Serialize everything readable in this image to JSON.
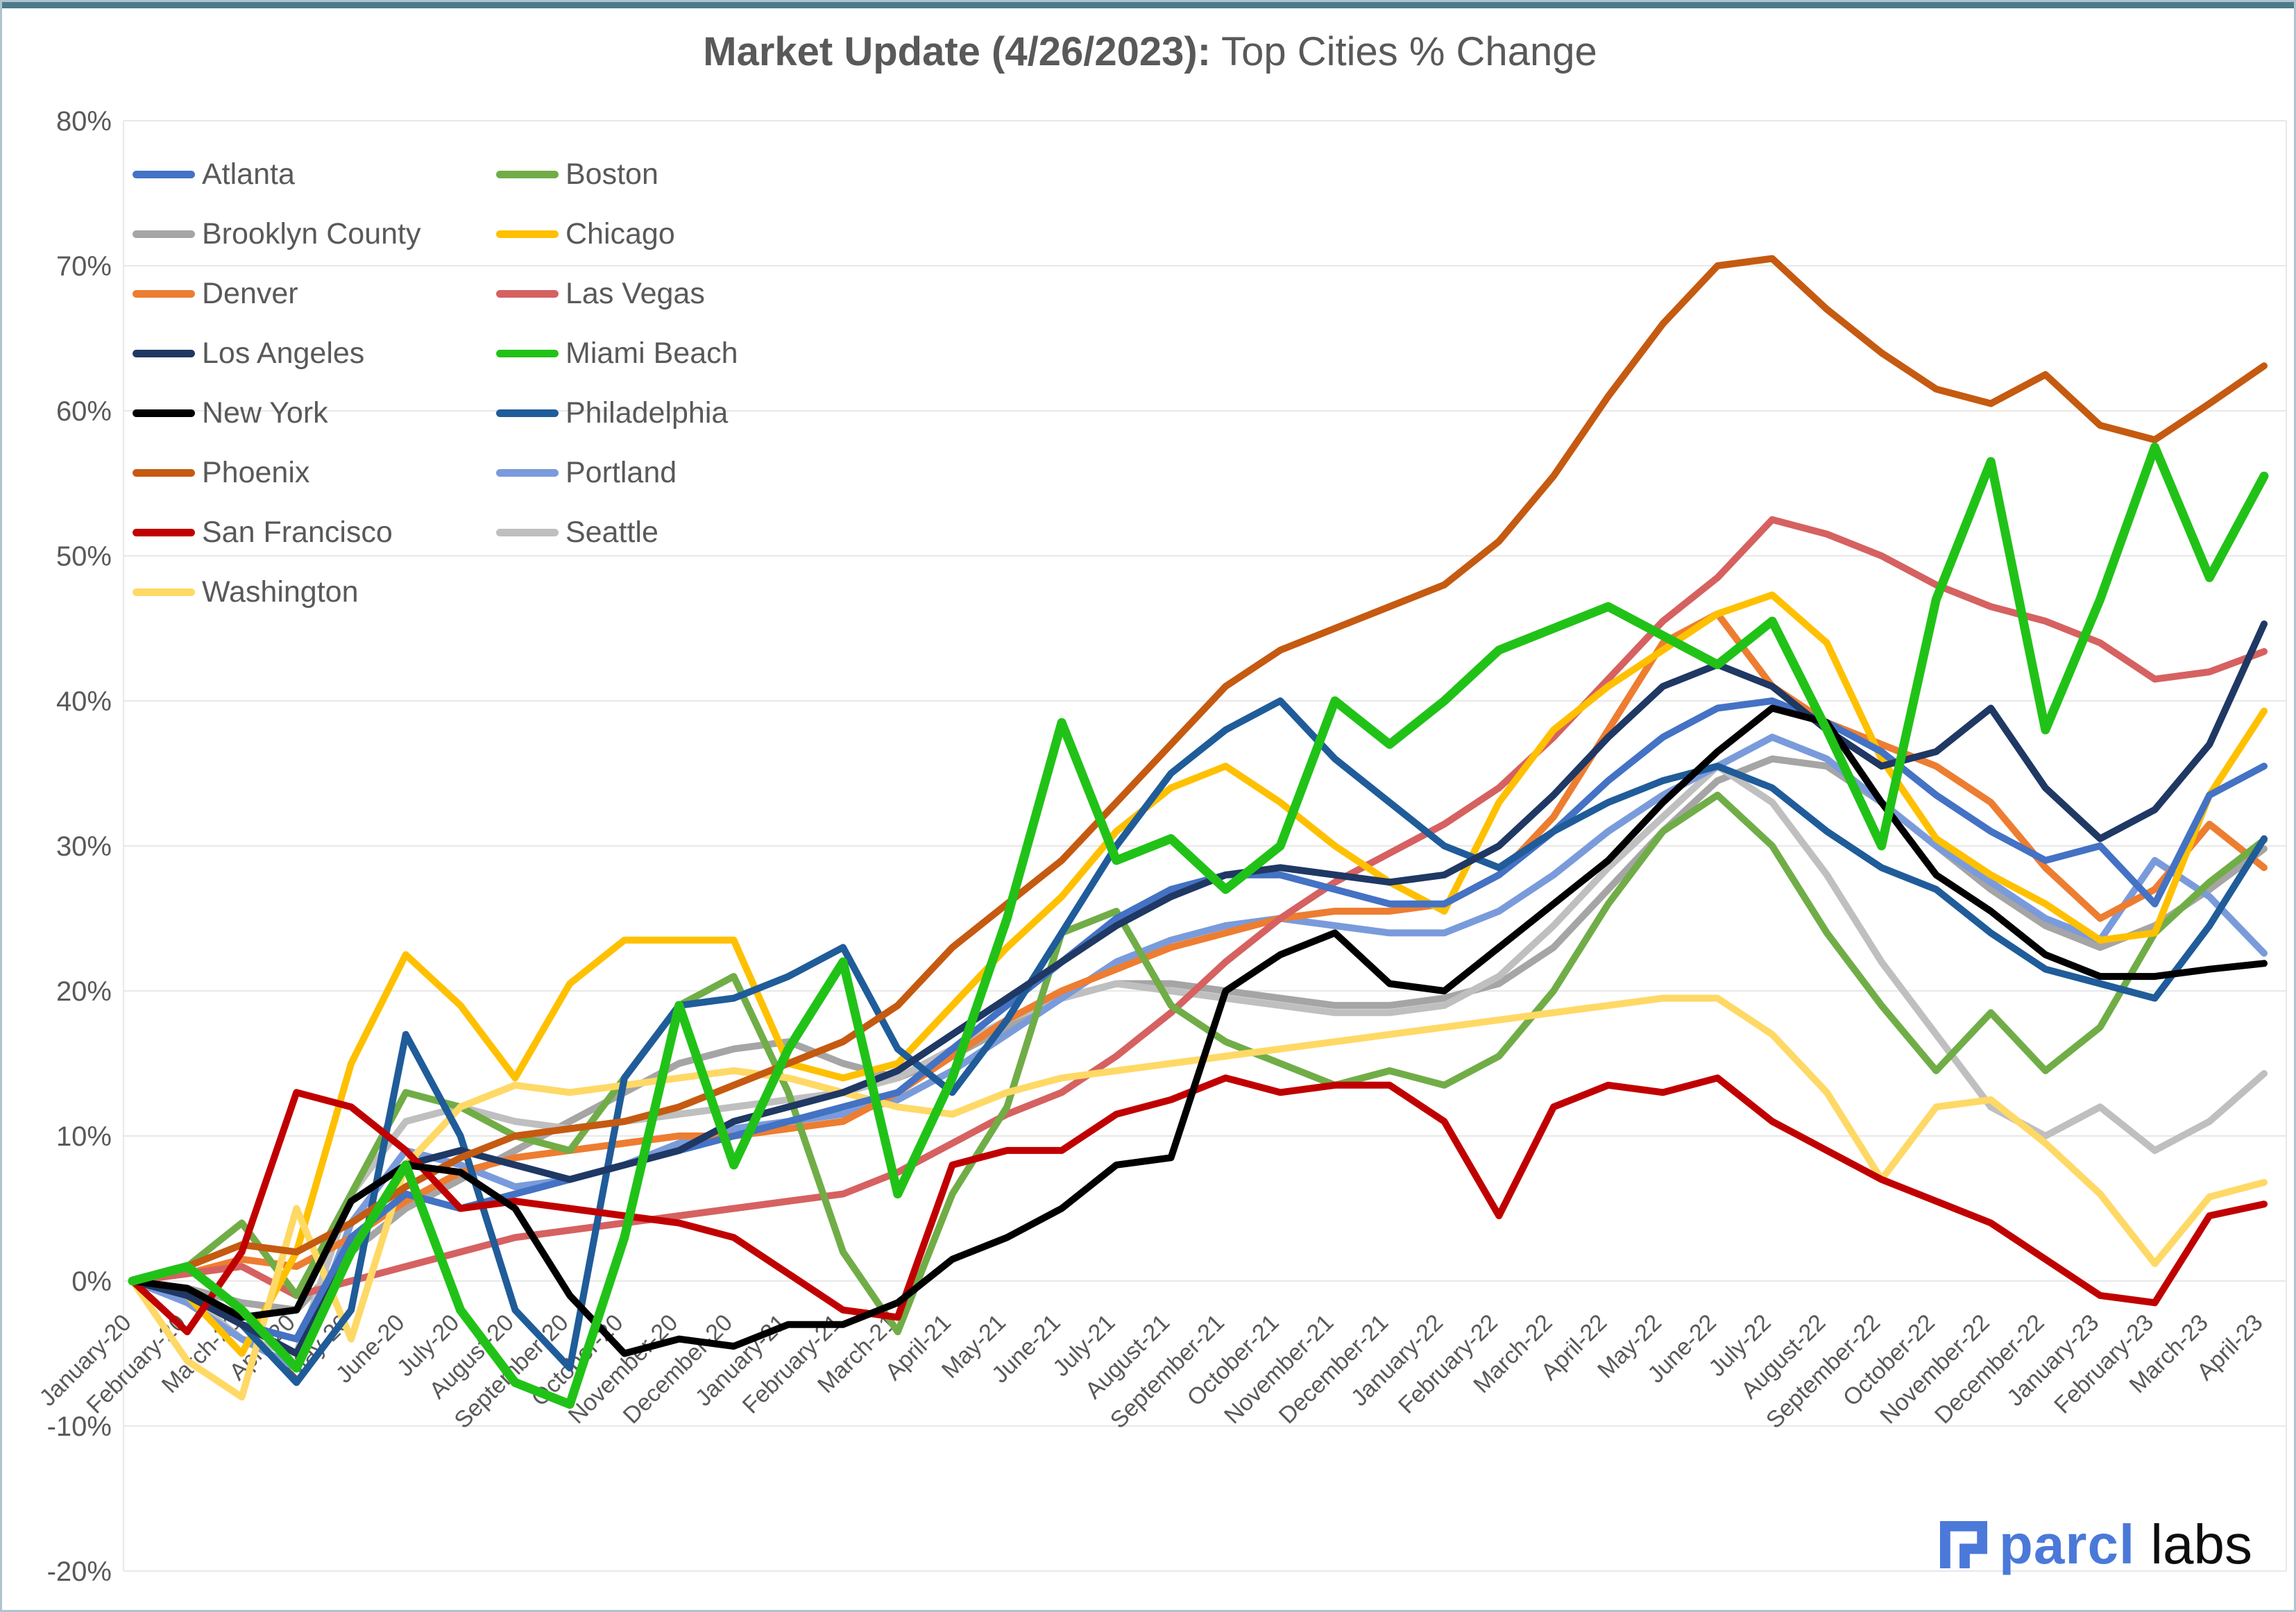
{
  "frame": {
    "background": "#ffffff",
    "border_color": "#afc3cf",
    "top_strip_color": "#4c7a8b"
  },
  "title": {
    "bold": "Market Update (4/26/2023):",
    "normal": "Top Cities % Change",
    "color": "#595959"
  },
  "logo": {
    "brand": "parcl",
    "suffix": "labs",
    "brand_color": "#4b79da",
    "suffix_color": "#0d0d0d"
  },
  "axes": {
    "text_color": "#595959",
    "gridline_color": "#e8e8e8",
    "y_tick_labels": [
      "80%",
      "70%",
      "60%",
      "50%",
      "40%",
      "30%",
      "20%",
      "10%",
      "0%",
      "-10%",
      "-20%"
    ],
    "y_tick_values": [
      80,
      70,
      60,
      50,
      40,
      30,
      20,
      10,
      0,
      -10,
      -20
    ]
  },
  "chart_data": {
    "type": "line",
    "title": "Market Update (4/26/2023): Top Cities % Change",
    "ylabel": "% change",
    "ylim": [
      -20,
      80
    ],
    "y_step": 10,
    "grid": "horizontal",
    "legend_position": "top-left-two-columns",
    "x": [
      "January-20",
      "February-20",
      "March-20",
      "April-20",
      "May-20",
      "June-20",
      "July-20",
      "August-20",
      "September-20",
      "October-20",
      "November-20",
      "December-20",
      "January-21",
      "February-21",
      "March-21",
      "April-21",
      "May-21",
      "June-21",
      "July-21",
      "August-21",
      "September-21",
      "October-21",
      "November-21",
      "December-21",
      "January-22",
      "February-22",
      "March-22",
      "April-22",
      "May-22",
      "June-22",
      "July-22",
      "August-22",
      "September-22",
      "October-22",
      "November-22",
      "December-22",
      "January-23",
      "February-23",
      "March-23",
      "April-23"
    ],
    "series": [
      {
        "name": "Atlanta",
        "color": "#4472c4",
        "values": [
          0,
          -1,
          -3,
          -4,
          3,
          6,
          5,
          6,
          7,
          8,
          9,
          10,
          11,
          12,
          13,
          16,
          19,
          22,
          25,
          27,
          28,
          28,
          27,
          26,
          26,
          28,
          31,
          34.5,
          37.5,
          39.5,
          40,
          38.5,
          36.5,
          33.5,
          31,
          29,
          30,
          26,
          33.5,
          35.5
        ]
      },
      {
        "name": "Boston",
        "color": "#70ad47",
        "values": [
          0,
          1,
          4,
          -1,
          6,
          13,
          12,
          10,
          9,
          14,
          19,
          21,
          13,
          2,
          -3.5,
          6,
          12,
          24,
          25.5,
          19,
          16.5,
          15,
          13.5,
          14.5,
          13.5,
          15.5,
          20,
          26,
          31,
          33.5,
          30,
          24,
          19,
          14.5,
          18.5,
          14.5,
          17.5,
          24,
          27.5,
          30.4
        ]
      },
      {
        "name": "Brooklyn County",
        "color": "#a5a5a5",
        "values": [
          0,
          -0.5,
          -1.5,
          -2,
          2,
          5,
          7,
          9,
          11,
          13,
          15,
          16,
          16.5,
          15,
          14,
          15.5,
          17.5,
          19.5,
          20.5,
          20.5,
          20,
          19.5,
          19,
          19,
          19.5,
          20.5,
          23,
          27,
          31,
          34.5,
          36,
          35.5,
          33,
          30,
          27,
          24.5,
          23,
          24.5,
          27,
          29.8
        ]
      },
      {
        "name": "Chicago",
        "color": "#ffc000",
        "values": [
          0,
          -1,
          -5,
          2,
          15,
          22.5,
          19,
          14,
          20.5,
          23.5,
          23.5,
          23.5,
          15,
          14,
          15,
          19,
          23,
          26.5,
          31,
          34,
          35.5,
          33,
          30,
          27.5,
          25.5,
          33,
          38,
          41,
          43.5,
          46,
          47.3,
          44,
          36,
          30.5,
          28,
          26,
          23.5,
          24,
          33.5,
          39.3
        ]
      },
      {
        "name": "Denver",
        "color": "#ed7d31",
        "values": [
          0,
          0.5,
          1.5,
          1,
          3,
          5.5,
          7.5,
          8.5,
          9,
          9.5,
          10,
          10,
          10.5,
          11,
          13,
          15.5,
          18,
          20,
          21.5,
          23,
          24,
          25,
          25.5,
          25.5,
          26,
          28,
          32,
          38,
          44,
          46,
          41,
          38.5,
          37,
          35.5,
          33,
          28.5,
          25,
          27,
          31.5,
          28.5
        ]
      },
      {
        "name": "Las Vegas",
        "color": "#d66161",
        "values": [
          0,
          0.5,
          1,
          -1,
          0,
          1,
          2,
          3,
          3.5,
          4,
          4.5,
          5,
          5.5,
          6,
          7.5,
          9.5,
          11.5,
          13,
          15.5,
          18.5,
          22,
          25,
          27.5,
          29.5,
          31.5,
          34,
          37.5,
          41.5,
          45.5,
          48.5,
          52.5,
          51.5,
          50,
          48,
          46.5,
          45.5,
          44,
          41.5,
          42,
          43.4
        ]
      },
      {
        "name": "Los Angeles",
        "color": "#1f3864",
        "values": [
          0,
          -1,
          -3,
          -5,
          2,
          8,
          9,
          8,
          7,
          8,
          9,
          11,
          12,
          13,
          14.5,
          17,
          19.5,
          22,
          24.5,
          26.5,
          28,
          28.5,
          28,
          27.5,
          28,
          30,
          33.5,
          37.5,
          41,
          42.5,
          41,
          38,
          35.5,
          36.5,
          39.5,
          34,
          30.5,
          32.5,
          37,
          45.3
        ]
      },
      {
        "name": "Miami Beach",
        "color": "#21c217",
        "values": [
          0,
          1,
          -2,
          -6,
          2,
          8,
          -2,
          -7,
          -8.5,
          3,
          19,
          8,
          16,
          22,
          6,
          14,
          25,
          38.5,
          29,
          30.5,
          27,
          30,
          40,
          37,
          40,
          43.5,
          45,
          46.5,
          44.5,
          42.5,
          45.5,
          38,
          30,
          47,
          56.5,
          38,
          47,
          57.5,
          48.5,
          55.5
        ]
      },
      {
        "name": "New York",
        "color": "#000000",
        "values": [
          0,
          -0.5,
          -2.5,
          -2,
          5.5,
          8,
          7.5,
          5,
          -1,
          -5,
          -4,
          -4.5,
          -3,
          -3,
          -1.5,
          1.5,
          3,
          5,
          8,
          8.5,
          20,
          22.5,
          24,
          20.5,
          20,
          23,
          26,
          29,
          33,
          36.5,
          39.5,
          38.5,
          33,
          28,
          25.5,
          22.5,
          21,
          21,
          21.5,
          21.9
        ]
      },
      {
        "name": "Philadelphia",
        "color": "#1f5c99",
        "values": [
          0,
          -1,
          -3,
          -7,
          -2,
          17,
          10,
          -2,
          -6,
          14,
          19,
          19.5,
          21,
          23,
          16,
          13,
          18,
          24,
          30,
          35,
          38,
          40,
          36,
          33,
          30,
          28.5,
          31,
          33,
          34.5,
          35.5,
          34,
          31,
          28.5,
          27,
          24,
          21.5,
          20.5,
          19.5,
          24.5,
          30.5
        ]
      },
      {
        "name": "Phoenix",
        "color": "#c55a11",
        "values": [
          0,
          1,
          2.5,
          2,
          4,
          6.5,
          8.5,
          10,
          10.5,
          11,
          12,
          13.5,
          15,
          16.5,
          19,
          23,
          26,
          29,
          33,
          37,
          41,
          43.5,
          45,
          46.5,
          48,
          51,
          55.5,
          61,
          66,
          70,
          70.5,
          67,
          64,
          61.5,
          60.5,
          62.5,
          59,
          58,
          60.5,
          63.1
        ]
      },
      {
        "name": "Portland",
        "color": "#7a9bdb",
        "values": [
          0,
          -1.5,
          -4,
          -6,
          4,
          9,
          8,
          6.5,
          7,
          8,
          9.5,
          10.5,
          11,
          11.5,
          12.5,
          14.5,
          17,
          19.5,
          22,
          23.5,
          24.5,
          25,
          24.5,
          24,
          24,
          25.5,
          28,
          31,
          33.5,
          35.5,
          37.5,
          36,
          33,
          30,
          27.5,
          25,
          23.5,
          29,
          26.5,
          22.6
        ]
      },
      {
        "name": "San Francisco",
        "color": "#c00000",
        "values": [
          0,
          -3.5,
          2,
          13,
          12,
          9,
          5,
          5.5,
          5,
          4.5,
          4,
          3,
          0.5,
          -2,
          -2.5,
          8,
          9,
          9,
          11.5,
          12.5,
          14,
          13,
          13.5,
          13.5,
          11,
          4.5,
          12,
          13.5,
          13,
          14,
          11,
          9,
          7,
          5.5,
          4,
          1.5,
          -1,
          -1.5,
          4.5,
          5.3
        ]
      },
      {
        "name": "Seattle",
        "color": "#bfbfbf",
        "values": [
          0,
          -1,
          -4,
          -5,
          6,
          11,
          12,
          11,
          10.5,
          11,
          11.5,
          12,
          12.5,
          13,
          14,
          16,
          18,
          19.5,
          20.5,
          20,
          19.5,
          19,
          18.5,
          18.5,
          19,
          21,
          24.5,
          28.5,
          32,
          35.5,
          33,
          28,
          22,
          17,
          12,
          10,
          12,
          9,
          11,
          14.3
        ]
      },
      {
        "name": "Washington",
        "color": "#ffd966",
        "values": [
          0,
          -5.5,
          -8,
          5,
          -4,
          8,
          12,
          13.5,
          13,
          13.5,
          14,
          14.5,
          14,
          13,
          12,
          11.5,
          13,
          14,
          14.5,
          15,
          15.5,
          16,
          16.5,
          17,
          17.5,
          18,
          18.5,
          19,
          19.5,
          19.5,
          17,
          13,
          7,
          12,
          12.5,
          9.5,
          6,
          1.2,
          5.8,
          6.8
        ]
      }
    ]
  }
}
